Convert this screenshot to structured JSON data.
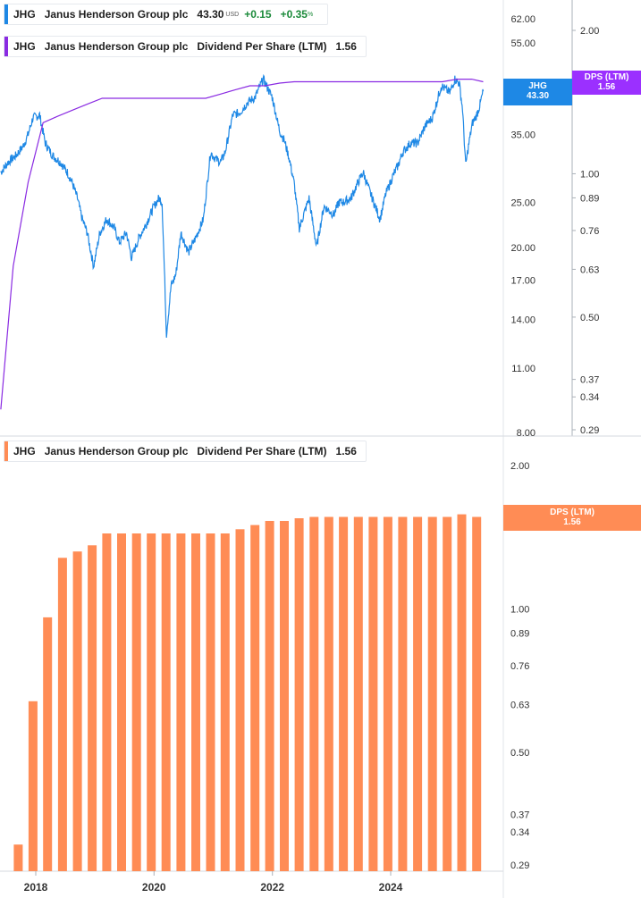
{
  "legends": {
    "price": {
      "ticker": "JHG",
      "company": "Janus Henderson Group plc",
      "price": "43.30",
      "unit": "USD",
      "change": "+0.15",
      "change_pct": "+0.35",
      "pct_sign": "%"
    },
    "dps_top": {
      "ticker": "JHG",
      "company": "Janus Henderson Group plc",
      "metric": "Dividend Per Share (LTM)",
      "value": "1.56"
    },
    "dps_bottom": {
      "ticker": "JHG",
      "company": "Janus Henderson Group plc",
      "metric": "Dividend Per Share (LTM)",
      "value": "1.56"
    }
  },
  "badges": {
    "price": {
      "label": "JHG",
      "value": "43.30"
    },
    "dps_top": {
      "label": "DPS (LTM)",
      "value": "1.56"
    },
    "dps_bottom": {
      "label": "DPS (LTM)",
      "value": "1.56"
    }
  },
  "colors": {
    "price": "#1e88e5",
    "dps_line": "#8a2be2",
    "dps_bar": "#ff8c55",
    "badge_price": "#1e88e5",
    "badge_dps_top": "#9b30ff",
    "badge_dps_bottom": "#ff8c55"
  },
  "chart_data": [
    {
      "type": "line",
      "scale": "log",
      "series": [
        {
          "name": "JHG",
          "points": [
            [
              "2017-05-30",
              29.0
            ],
            [
              "2017-07-15",
              30.5
            ],
            [
              "2017-09-01",
              31.5
            ],
            [
              "2017-10-15",
              33.0
            ],
            [
              "2017-11-15",
              35.0
            ],
            [
              "2017-12-15",
              38.0
            ],
            [
              "2018-01-25",
              38.5
            ],
            [
              "2018-03-01",
              33.5
            ],
            [
              "2018-04-15",
              31.5
            ],
            [
              "2018-06-01",
              30.5
            ],
            [
              "2018-07-15",
              29.0
            ],
            [
              "2018-08-15",
              27.5
            ],
            [
              "2018-09-15",
              25.5
            ],
            [
              "2018-10-15",
              23.0
            ],
            [
              "2018-11-15",
              21.5
            ],
            [
              "2018-12-24",
              18.2
            ],
            [
              "2019-02-01",
              21.5
            ],
            [
              "2019-03-15",
              23.0
            ],
            [
              "2019-05-01",
              22.0
            ],
            [
              "2019-06-01",
              20.5
            ],
            [
              "2019-07-15",
              21.5
            ],
            [
              "2019-08-15",
              19.0
            ],
            [
              "2019-10-01",
              21.0
            ],
            [
              "2019-11-15",
              22.5
            ],
            [
              "2019-12-31",
              24.5
            ],
            [
              "2020-01-31",
              25.5
            ],
            [
              "2020-02-20",
              25.0
            ],
            [
              "2020-03-18",
              13.0
            ],
            [
              "2020-04-15",
              16.5
            ],
            [
              "2020-05-15",
              17.5
            ],
            [
              "2020-06-15",
              21.5
            ],
            [
              "2020-08-01",
              19.5
            ],
            [
              "2020-09-15",
              21.0
            ],
            [
              "2020-11-01",
              23.0
            ],
            [
              "2020-12-15",
              32.0
            ],
            [
              "2021-01-15",
              31.0
            ],
            [
              "2021-02-15",
              30.5
            ],
            [
              "2021-03-15",
              32.0
            ],
            [
              "2021-05-01",
              38.5
            ],
            [
              "2021-06-15",
              39.0
            ],
            [
              "2021-08-01",
              41.0
            ],
            [
              "2021-09-15",
              42.0
            ],
            [
              "2021-11-05",
              46.0
            ],
            [
              "2021-12-31",
              42.0
            ],
            [
              "2022-02-15",
              35.5
            ],
            [
              "2022-03-15",
              34.0
            ],
            [
              "2022-04-15",
              31.0
            ],
            [
              "2022-05-15",
              27.5
            ],
            [
              "2022-06-16",
              22.0
            ],
            [
              "2022-08-15",
              25.5
            ],
            [
              "2022-09-30",
              20.0
            ],
            [
              "2022-11-15",
              24.5
            ],
            [
              "2023-01-15",
              23.5
            ],
            [
              "2023-02-15",
              25.0
            ],
            [
              "2023-03-15",
              25.0
            ],
            [
              "2023-05-01",
              25.5
            ],
            [
              "2023-06-01",
              27.0
            ],
            [
              "2023-07-15",
              29.0
            ],
            [
              "2023-08-31",
              26.0
            ],
            [
              "2023-10-27",
              23.0
            ],
            [
              "2023-12-01",
              26.0
            ],
            [
              "2024-01-15",
              28.5
            ],
            [
              "2024-02-15",
              30.0
            ],
            [
              "2024-03-15",
              32.0
            ],
            [
              "2024-05-01",
              33.5
            ],
            [
              "2024-06-15",
              33.5
            ],
            [
              "2024-08-01",
              36.5
            ],
            [
              "2024-09-15",
              38.0
            ],
            [
              "2024-11-08",
              44.5
            ],
            [
              "2024-12-31",
              43.0
            ],
            [
              "2025-01-31",
              46.0
            ],
            [
              "2025-02-28",
              45.0
            ],
            [
              "2025-03-20",
              39.5
            ],
            [
              "2025-04-08",
              30.0
            ],
            [
              "2025-05-01",
              34.0
            ],
            [
              "2025-05-20",
              37.0
            ],
            [
              "2025-06-15",
              38.5
            ],
            [
              "2025-07-01",
              40.0
            ],
            [
              "2025-07-25",
              43.3
            ]
          ]
        },
        {
          "name": "Dividend Per Share (LTM)",
          "axis": "right",
          "points": [
            [
              "2017-05-30",
              0.32
            ],
            [
              "2017-08-15",
              0.64
            ],
            [
              "2017-11-15",
              0.96
            ],
            [
              "2018-02-15",
              1.28
            ],
            [
              "2018-05-15",
              1.32
            ],
            [
              "2018-08-15",
              1.36
            ],
            [
              "2018-11-15",
              1.4
            ],
            [
              "2019-02-15",
              1.44
            ],
            [
              "2019-05-15",
              1.44
            ],
            [
              "2020-11-15",
              1.44
            ],
            [
              "2021-02-15",
              1.47
            ],
            [
              "2021-05-15",
              1.5
            ],
            [
              "2021-08-15",
              1.53
            ],
            [
              "2021-11-15",
              1.53
            ],
            [
              "2022-02-15",
              1.55
            ],
            [
              "2022-05-15",
              1.56
            ],
            [
              "2022-08-15",
              1.56
            ],
            [
              "2024-11-15",
              1.56
            ],
            [
              "2025-02-15",
              1.58
            ],
            [
              "2025-05-15",
              1.58
            ],
            [
              "2025-07-25",
              1.56
            ]
          ]
        }
      ],
      "left_axis_ticks": [
        8.0,
        11.0,
        14.0,
        17.0,
        20.0,
        25.0,
        35.0,
        55.0,
        62.0
      ],
      "right_axis_ticks": [
        0.29,
        0.34,
        0.37,
        0.5,
        0.63,
        0.76,
        0.89,
        1.0,
        2.0
      ]
    },
    {
      "type": "bar",
      "scale": "log",
      "x": [
        "2017-09-15",
        "2017-12-15",
        "2018-03-15",
        "2018-06-15",
        "2018-09-15",
        "2018-12-15",
        "2019-03-15",
        "2019-06-15",
        "2019-09-15",
        "2019-12-15",
        "2020-03-15",
        "2020-06-15",
        "2020-09-15",
        "2020-12-15",
        "2021-03-15",
        "2021-06-15",
        "2021-09-15",
        "2021-12-15",
        "2022-03-15",
        "2022-06-15",
        "2022-09-15",
        "2022-12-15",
        "2023-03-15",
        "2023-06-15",
        "2023-09-15",
        "2023-12-15",
        "2024-03-15",
        "2024-06-15",
        "2024-09-15",
        "2024-12-15",
        "2025-03-15",
        "2025-06-15"
      ],
      "series": [
        {
          "name": "Dividend Per Share (LTM)",
          "values": [
            0.32,
            0.64,
            0.96,
            1.28,
            1.32,
            1.36,
            1.44,
            1.44,
            1.44,
            1.44,
            1.44,
            1.44,
            1.44,
            1.44,
            1.44,
            1.47,
            1.5,
            1.53,
            1.53,
            1.55,
            1.56,
            1.56,
            1.56,
            1.56,
            1.56,
            1.56,
            1.56,
            1.56,
            1.56,
            1.56,
            1.58,
            1.56
          ]
        }
      ],
      "right_axis_ticks": [
        0.29,
        0.34,
        0.37,
        0.5,
        0.63,
        0.76,
        0.89,
        1.0,
        2.0
      ],
      "x_tick_labels": [
        "2018",
        "2020",
        "2022",
        "2024"
      ]
    }
  ]
}
